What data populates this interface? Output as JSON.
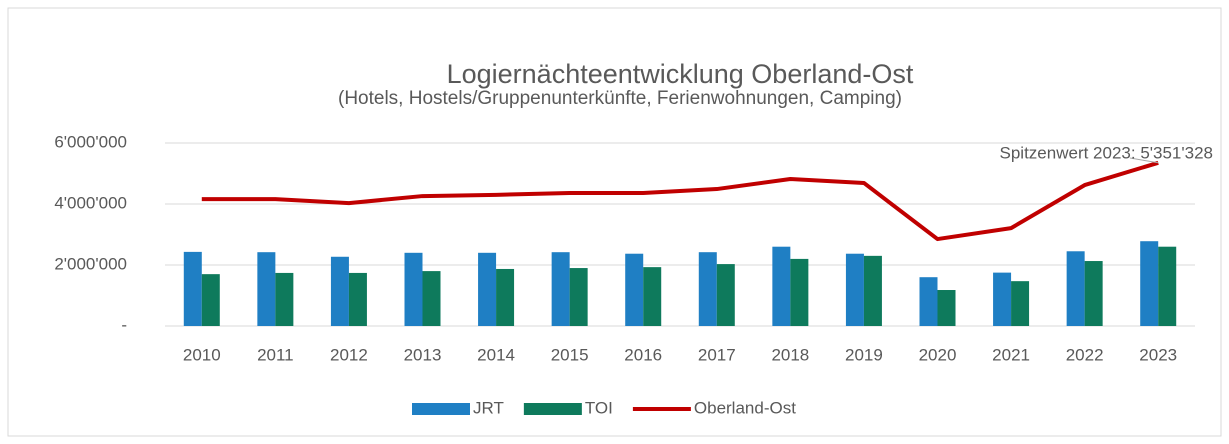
{
  "chart_data": {
    "type": "bar-line",
    "title": "Logiernächteentwicklung Oberland-Ost",
    "subtitle": "(Hotels, Hostels/Gruppenunterkünfte, Ferienwohnungen, Camping)",
    "annotation": "Spitzenwert 2023:  5'351'328",
    "categories": [
      "2010",
      "2011",
      "2012",
      "2013",
      "2014",
      "2015",
      "2016",
      "2017",
      "2018",
      "2019",
      "2020",
      "2021",
      "2022",
      "2023"
    ],
    "series": [
      {
        "name": "JRT",
        "type": "bar",
        "color": "#1f7fc4",
        "values": [
          2430000,
          2420000,
          2270000,
          2400000,
          2400000,
          2420000,
          2370000,
          2420000,
          2600000,
          2370000,
          1600000,
          1750000,
          2450000,
          2780000
        ]
      },
      {
        "name": "TOI",
        "type": "bar",
        "color": "#0e7a5c",
        "values": [
          1700000,
          1740000,
          1740000,
          1800000,
          1870000,
          1900000,
          1930000,
          2030000,
          2200000,
          2300000,
          1180000,
          1470000,
          2130000,
          2600000
        ]
      },
      {
        "name": "Oberland-Ost",
        "type": "line",
        "color": "#c00000",
        "values": [
          4160000,
          4160000,
          4030000,
          4260000,
          4300000,
          4360000,
          4360000,
          4490000,
          4820000,
          4690000,
          2850000,
          3210000,
          4620000,
          5351328
        ]
      }
    ],
    "ylim": [
      0,
      6000000
    ],
    "yticks": [
      {
        "value": 0,
        "label": "-"
      },
      {
        "value": 2000000,
        "label": "2'000'000"
      },
      {
        "value": 4000000,
        "label": "4'000'000"
      },
      {
        "value": 6000000,
        "label": "6'000'000"
      }
    ],
    "grid": true,
    "legend": "bottom"
  }
}
